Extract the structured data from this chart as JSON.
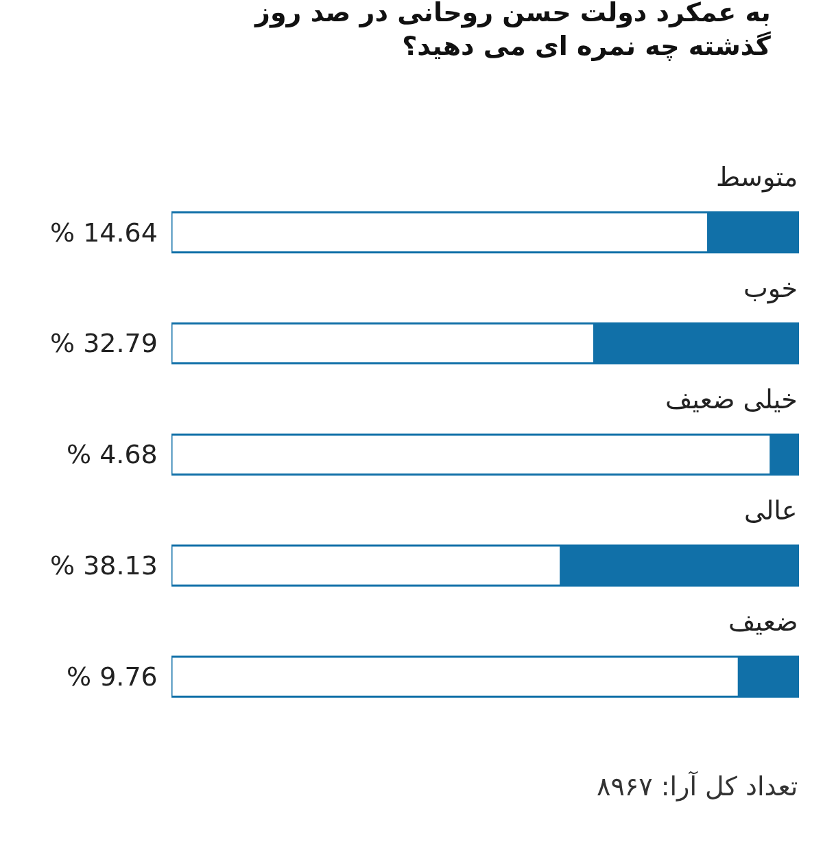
{
  "chart_data": {
    "type": "bar",
    "orientation": "horizontal",
    "title": "به عمکرد دولت حسن روحانی در صد روز گذشته چه نمره ای می دهید؟",
    "categories": [
      "متوسط",
      "خوب",
      "خیلی ضعیف",
      "عالی",
      "ضعیف"
    ],
    "values": [
      14.64,
      32.79,
      4.68,
      38.13,
      9.76
    ],
    "value_labels": [
      "% 14.64",
      "% 32.79",
      "% 4.68",
      "% 38.13",
      "% 9.76"
    ],
    "color": "#1170a8",
    "xlim": [
      100,
      0
    ],
    "grid": false,
    "legend": false,
    "annotations": [
      "تعداد کل آرا: ۸۹۶۷"
    ]
  }
}
